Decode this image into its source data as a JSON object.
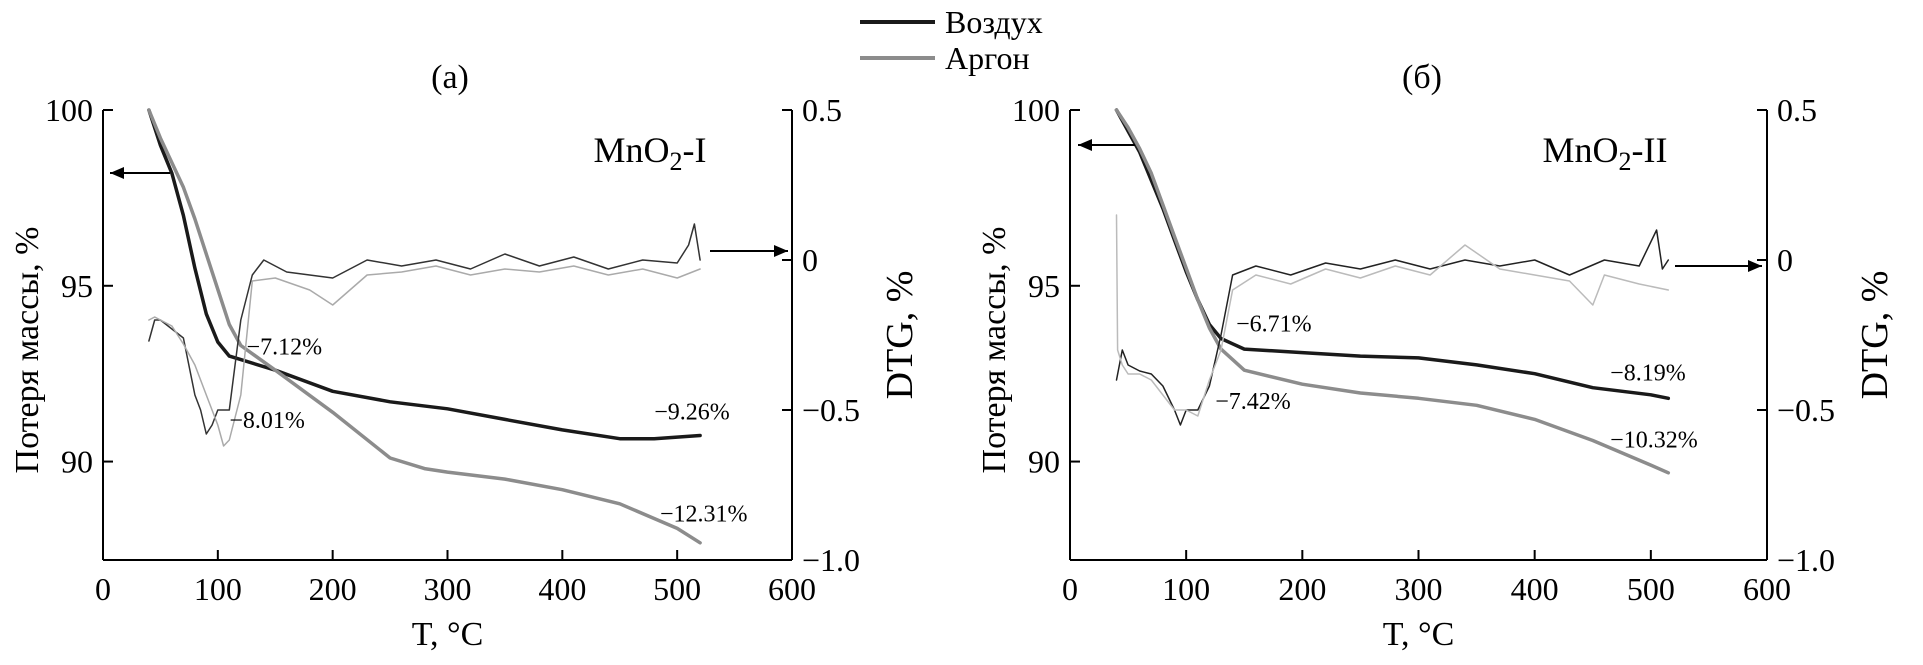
{
  "legend": {
    "position": "top-center",
    "items": [
      {
        "label": "Воздух",
        "color": "#1a1a1a"
      },
      {
        "label": "Аргон",
        "color": "#8c8c8c"
      }
    ]
  },
  "chart_data": [
    {
      "type": "line",
      "panel_label": "(a)",
      "sample_label_parts": {
        "main": "MnO",
        "sub": "2",
        "suffix": "-I"
      },
      "xlabel": "T, °C",
      "ylabel_left": "Потеря массы, %",
      "ylabel_right": "DTG, %",
      "xlim": [
        0,
        600
      ],
      "ylim_left": [
        87.2,
        100
      ],
      "ylim_right": [
        -1.0,
        0.5
      ],
      "xticks": [
        0,
        100,
        200,
        300,
        400,
        500,
        600
      ],
      "yticks_left": [
        90,
        95,
        100
      ],
      "yticks_right": [
        -1.0,
        -0.5,
        0,
        0.5
      ],
      "ytick_labels_right": [
        "−1.0",
        "−0.5",
        "0",
        "0.5"
      ],
      "series": [
        {
          "name": "Воздух",
          "axis": "left",
          "color": "#1a1a1a",
          "width": 3.5,
          "x": [
            40,
            50,
            60,
            70,
            80,
            90,
            100,
            110,
            120,
            150,
            200,
            250,
            300,
            350,
            400,
            450,
            480,
            520
          ],
          "y": [
            100,
            99.0,
            98.2,
            97.0,
            95.5,
            94.2,
            93.4,
            93.0,
            92.9,
            92.6,
            92.0,
            91.7,
            91.5,
            91.2,
            90.9,
            90.65,
            90.65,
            90.74
          ]
        },
        {
          "name": "Аргон",
          "axis": "left",
          "color": "#8c8c8c",
          "width": 3.5,
          "x": [
            40,
            50,
            60,
            70,
            80,
            90,
            100,
            110,
            120,
            150,
            200,
            250,
            280,
            300,
            350,
            400,
            450,
            500,
            520
          ],
          "y": [
            100,
            99.2,
            98.5,
            97.8,
            96.9,
            95.9,
            94.9,
            93.9,
            93.3,
            92.6,
            91.4,
            90.1,
            89.8,
            89.7,
            89.5,
            89.2,
            88.8,
            88.1,
            87.69
          ]
        },
        {
          "name": "Воздух",
          "axis": "right",
          "color": "#333333",
          "width": 1.5,
          "x": [
            40,
            45,
            50,
            60,
            70,
            80,
            85,
            90,
            95,
            100,
            110,
            120,
            130,
            140,
            160,
            180,
            200,
            230,
            260,
            290,
            320,
            350,
            380,
            410,
            440,
            470,
            500,
            510,
            515,
            520
          ],
          "y": [
            -0.27,
            -0.2,
            -0.2,
            -0.23,
            -0.26,
            -0.45,
            -0.5,
            -0.58,
            -0.55,
            -0.5,
            -0.5,
            -0.2,
            -0.05,
            0.0,
            -0.04,
            -0.05,
            -0.06,
            0.0,
            -0.02,
            0.0,
            -0.03,
            0.02,
            -0.02,
            0.01,
            -0.03,
            0.0,
            -0.01,
            0.05,
            0.12,
            0.0
          ]
        },
        {
          "name": "Аргон",
          "axis": "right",
          "color": "#aaaaaa",
          "width": 1.5,
          "x": [
            40,
            45,
            50,
            60,
            70,
            80,
            90,
            100,
            105,
            110,
            120,
            130,
            150,
            180,
            200,
            230,
            260,
            290,
            320,
            350,
            380,
            410,
            440,
            470,
            500,
            520
          ],
          "y": [
            -0.2,
            -0.19,
            -0.2,
            -0.22,
            -0.28,
            -0.35,
            -0.45,
            -0.55,
            -0.62,
            -0.6,
            -0.45,
            -0.07,
            -0.06,
            -0.1,
            -0.15,
            -0.05,
            -0.04,
            -0.02,
            -0.05,
            -0.03,
            -0.04,
            -0.02,
            -0.05,
            -0.03,
            -0.06,
            -0.03
          ]
        }
      ],
      "annotations": [
        {
          "text": "−7.12%",
          "x": 125,
          "y_left": 93.05
        },
        {
          "text": "−8.01%",
          "x": 110,
          "y_left": 90.95
        },
        {
          "text": "−9.26%",
          "x": 480,
          "y_left": 91.2
        },
        {
          "text": "−12.31%",
          "x": 485,
          "y_left": 88.3
        }
      ]
    },
    {
      "type": "line",
      "panel_label": "(б)",
      "sample_label_parts": {
        "main": "MnO",
        "sub": "2",
        "suffix": "-II"
      },
      "xlabel": "T, °C",
      "ylabel_left": "Потеря массы, %",
      "ylabel_right": "DTG, %",
      "xlim": [
        0,
        600
      ],
      "ylim_left": [
        87.2,
        100
      ],
      "ylim_right": [
        -1.0,
        0.5
      ],
      "xticks": [
        0,
        100,
        200,
        300,
        400,
        500,
        600
      ],
      "yticks_left": [
        90,
        95,
        100
      ],
      "yticks_right": [
        -1.0,
        -0.5,
        0,
        0.5
      ],
      "ytick_labels_right": [
        "−1.0",
        "−0.5",
        "0",
        "0.5"
      ],
      "series": [
        {
          "name": "Воздух",
          "axis": "left",
          "color": "#1a1a1a",
          "width": 3.5,
          "x": [
            40,
            50,
            60,
            70,
            80,
            90,
            100,
            110,
            120,
            130,
            140,
            150,
            200,
            250,
            300,
            350,
            400,
            450,
            500,
            515
          ],
          "y": [
            100,
            99.4,
            98.8,
            98.0,
            97.2,
            96.3,
            95.4,
            94.6,
            93.9,
            93.5,
            93.35,
            93.2,
            93.1,
            93.0,
            92.95,
            92.75,
            92.5,
            92.1,
            91.9,
            91.8
          ]
        },
        {
          "name": "Аргон",
          "axis": "left",
          "color": "#8c8c8c",
          "width": 3.5,
          "x": [
            40,
            50,
            60,
            70,
            80,
            90,
            100,
            110,
            120,
            130,
            140,
            150,
            200,
            250,
            300,
            350,
            400,
            450,
            500,
            515
          ],
          "y": [
            100,
            99.5,
            98.9,
            98.2,
            97.3,
            96.4,
            95.5,
            94.6,
            93.8,
            93.2,
            92.9,
            92.6,
            92.2,
            91.95,
            91.8,
            91.6,
            91.2,
            90.6,
            89.9,
            89.68
          ]
        },
        {
          "name": "Воздух",
          "axis": "right",
          "color": "#222222",
          "width": 1.5,
          "x": [
            40,
            45,
            50,
            60,
            70,
            80,
            90,
            95,
            100,
            110,
            120,
            130,
            140,
            160,
            190,
            220,
            250,
            280,
            310,
            340,
            370,
            400,
            430,
            460,
            490,
            505,
            510,
            515
          ],
          "y": [
            -0.4,
            -0.3,
            -0.35,
            -0.37,
            -0.38,
            -0.42,
            -0.5,
            -0.55,
            -0.5,
            -0.5,
            -0.42,
            -0.25,
            -0.05,
            -0.02,
            -0.05,
            -0.01,
            -0.03,
            0.0,
            -0.03,
            0.0,
            -0.02,
            0.0,
            -0.05,
            0.0,
            -0.02,
            0.1,
            -0.03,
            0.0
          ]
        },
        {
          "name": "Аргон",
          "axis": "right",
          "color": "#bbbbbb",
          "width": 1.5,
          "x": [
            40,
            41,
            45,
            50,
            60,
            70,
            80,
            90,
            100,
            110,
            120,
            130,
            140,
            160,
            190,
            220,
            250,
            280,
            310,
            340,
            370,
            400,
            430,
            450,
            460,
            490,
            515
          ],
          "y": [
            0.15,
            -0.3,
            -0.35,
            -0.38,
            -0.38,
            -0.4,
            -0.45,
            -0.5,
            -0.5,
            -0.52,
            -0.4,
            -0.3,
            -0.1,
            -0.05,
            -0.08,
            -0.03,
            -0.06,
            -0.02,
            -0.05,
            0.05,
            -0.03,
            -0.05,
            -0.07,
            -0.15,
            -0.05,
            -0.08,
            -0.1
          ]
        }
      ],
      "annotations": [
        {
          "text": "−6.71%",
          "x": 143,
          "y_left": 93.7
        },
        {
          "text": "−7.42%",
          "x": 125,
          "y_left": 91.5
        },
        {
          "text": "−8.19%",
          "x": 465,
          "y_left": 92.3
        },
        {
          "text": "−10.32%",
          "x": 465,
          "y_left": 90.4
        }
      ]
    }
  ]
}
